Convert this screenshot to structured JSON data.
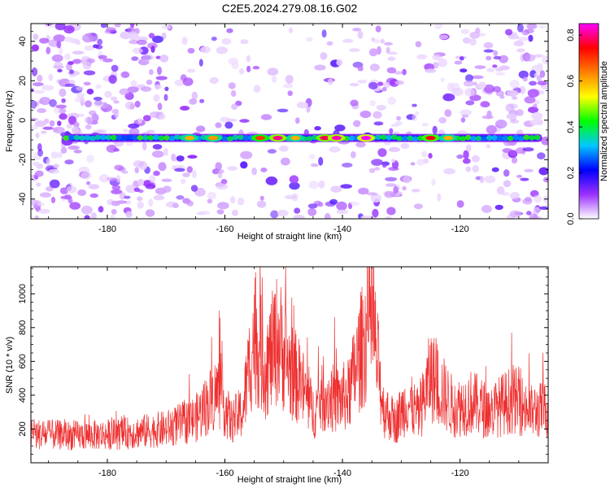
{
  "page_title": "C2E5.2024.279.08.16.G02",
  "chart_data": [
    {
      "type": "heatmap",
      "title": "C2E5.2024.279.08.16.G02",
      "xlabel": "Height of straight line (km)",
      "ylabel": "Frequency (Hz)",
      "xlim": [
        -193,
        -105
      ],
      "ylim": [
        -50,
        49
      ],
      "xticks": [
        -180,
        -160,
        -140,
        -120
      ],
      "yticks": [
        40,
        20,
        0,
        -20,
        -40
      ],
      "colorbar": {
        "label": "Normalized spectral amplitude",
        "range": [
          0.0,
          0.85
        ],
        "ticks": [
          0.0,
          0.2,
          0.4,
          0.6,
          0.8
        ],
        "colormap": [
          "#ffffff",
          "#9b30ff",
          "#0000ff",
          "#00c8ff",
          "#00ff00",
          "#ffff00",
          "#ff8000",
          "#ff0000",
          "#ff00ff"
        ]
      },
      "signal_band": {
        "frequency_hz": -9,
        "x_start": -187,
        "x_end": -106,
        "peaks": [
          {
            "x": -166,
            "value": 0.6
          },
          {
            "x": -162,
            "value": 0.62
          },
          {
            "x": -154,
            "value": 0.7
          },
          {
            "x": -151,
            "value": 0.8
          },
          {
            "x": -148,
            "value": 0.6
          },
          {
            "x": -143,
            "value": 0.78
          },
          {
            "x": -141,
            "value": 0.82
          },
          {
            "x": -136,
            "value": 0.85
          },
          {
            "x": -125,
            "value": 0.75
          },
          {
            "x": -122,
            "value": 0.6
          }
        ]
      }
    },
    {
      "type": "line",
      "xlabel": "Height of straight line (km)",
      "ylabel": "SNR (10 * v/v)",
      "xlim": [
        -193,
        -105
      ],
      "ylim": [
        0,
        1160
      ],
      "xticks": [
        -180,
        -160,
        -140,
        -120
      ],
      "yticks": [
        200,
        400,
        600,
        800,
        1000
      ],
      "line_color": "#ee3030",
      "envelope": [
        {
          "x": -193,
          "y": 170
        },
        {
          "x": -185,
          "y": 160
        },
        {
          "x": -178,
          "y": 170
        },
        {
          "x": -170,
          "y": 200
        },
        {
          "x": -165,
          "y": 260
        },
        {
          "x": -161,
          "y": 430
        },
        {
          "x": -159,
          "y": 240
        },
        {
          "x": -157,
          "y": 300
        },
        {
          "x": -155,
          "y": 760
        },
        {
          "x": -153,
          "y": 560
        },
        {
          "x": -151,
          "y": 740
        },
        {
          "x": -149,
          "y": 560
        },
        {
          "x": -147,
          "y": 460
        },
        {
          "x": -145,
          "y": 300
        },
        {
          "x": -143,
          "y": 400
        },
        {
          "x": -141,
          "y": 370
        },
        {
          "x": -139,
          "y": 400
        },
        {
          "x": -137,
          "y": 650
        },
        {
          "x": -135,
          "y": 850
        },
        {
          "x": -133,
          "y": 320
        },
        {
          "x": -131,
          "y": 240
        },
        {
          "x": -129,
          "y": 360
        },
        {
          "x": -127,
          "y": 280
        },
        {
          "x": -125,
          "y": 520
        },
        {
          "x": -123,
          "y": 420
        },
        {
          "x": -121,
          "y": 320
        },
        {
          "x": -118,
          "y": 360
        },
        {
          "x": -115,
          "y": 300
        },
        {
          "x": -111,
          "y": 380
        },
        {
          "x": -108,
          "y": 300
        },
        {
          "x": -105,
          "y": 320
        }
      ]
    }
  ]
}
